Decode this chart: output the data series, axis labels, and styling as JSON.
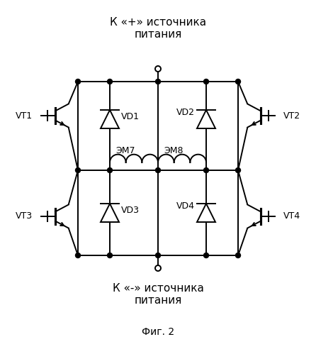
{
  "title_top": "К «+» источника\nпитания",
  "title_bottom1": "К «-» источника\nпитания",
  "title_bottom2": "Фиг. 2",
  "VT1": "VT1",
  "VT2": "VT2",
  "VT3": "VT3",
  "VT4": "VT4",
  "VD1": "VD1",
  "VD2": "VD2",
  "VD3": "VD3",
  "VD4": "VD4",
  "EM7": "ЭМ7",
  "EM8": "ЭМ8",
  "bg_color": "#ffffff",
  "fontsize_title": 11,
  "fontsize_label": 9,
  "fontsize_fig": 10
}
